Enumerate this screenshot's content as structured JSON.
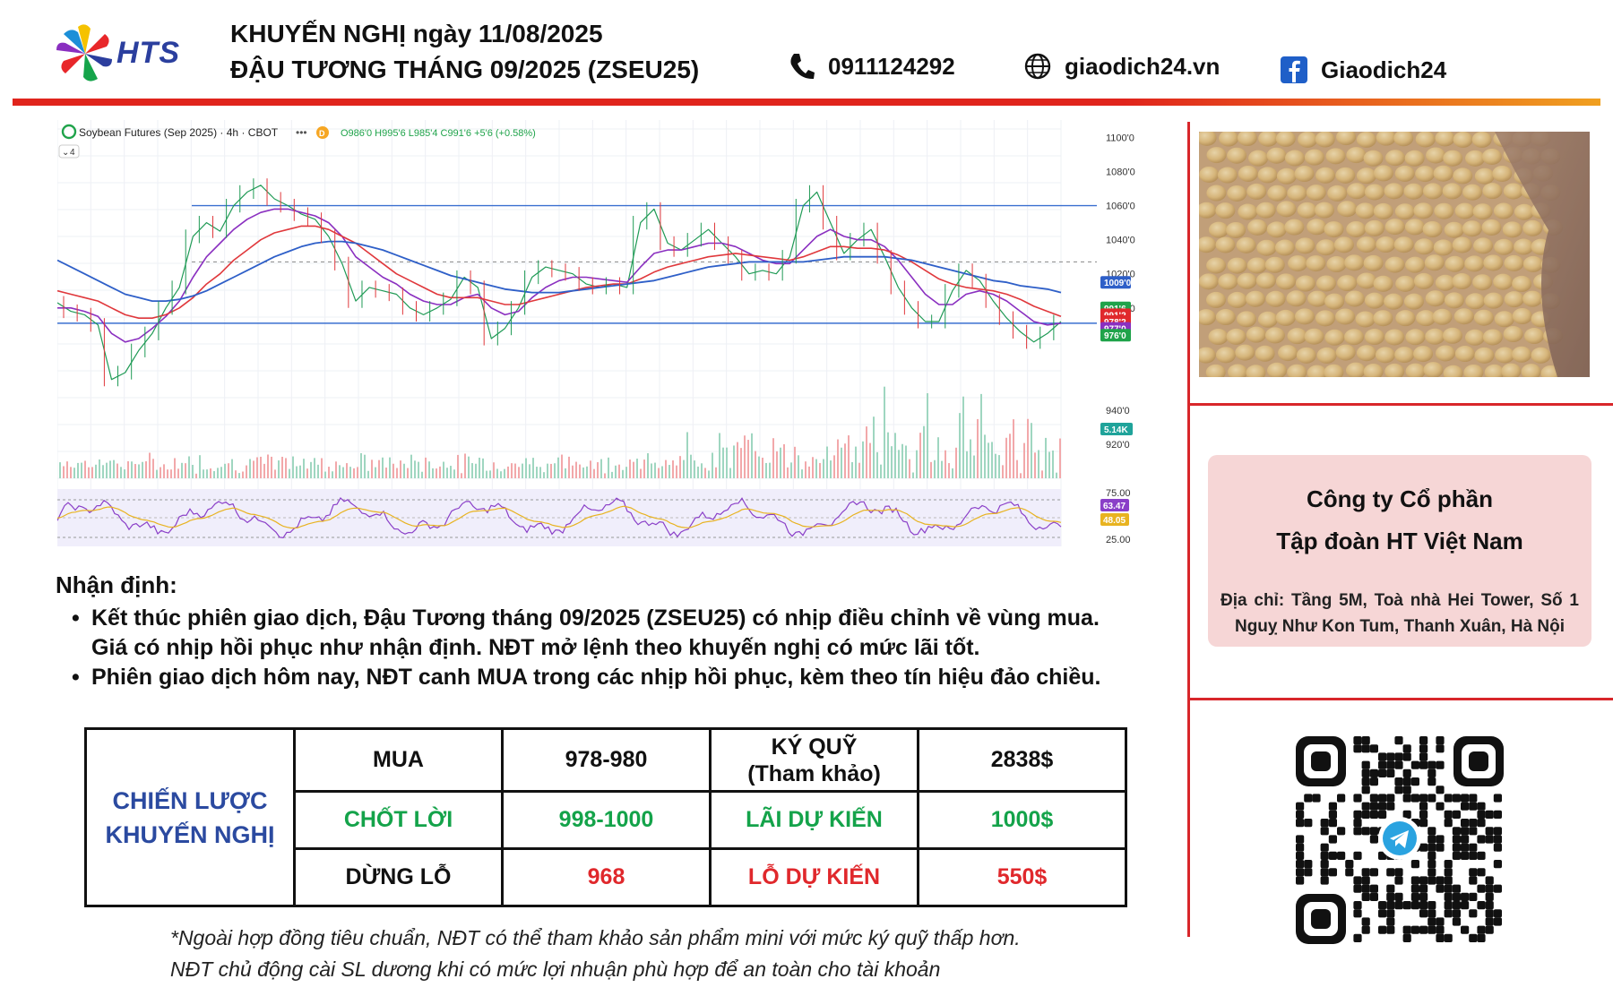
{
  "header": {
    "logo_text": "HTS",
    "title_line1": "KHUYẾN NGHỊ ngày 11/08/2025",
    "title_line2": "ĐẬU TƯƠNG THÁNG 09/2025 (ZSEU25)",
    "phone": "0911124292",
    "website": "giaodich24.vn",
    "facebook": "Giaodich24"
  },
  "chart_header": {
    "symbol": "Soybean Futures (Sep 2025) · 4h · CBOT",
    "ohlc": "O986'0 H995'6 L985'4 C991'6 +5'6 (+0.58%)",
    "indicator_count": "4"
  },
  "chart_data": {
    "type": "line",
    "price_axis_labels": [
      "1100'0",
      "1080'0",
      "1060'0",
      "1040'0",
      "1020'0",
      "1000'0",
      "940'0",
      "920'0"
    ],
    "price_badges": [
      {
        "label": "1009'0",
        "color": "#2e5fc8"
      },
      {
        "label": "991'6",
        "color": "#1fa34a"
      },
      {
        "label": "991'2",
        "color": "#e0282c"
      },
      {
        "label": "978'2",
        "color": "#e0282c"
      },
      {
        "label": "977'0",
        "color": "#8a2fc0"
      },
      {
        "label": "976'0",
        "color": "#1fa34a"
      }
    ],
    "volume_badge": {
      "label": "5.14K",
      "color": "#1fa39a"
    },
    "rsi_axis_labels": [
      "75.00",
      "25.00"
    ],
    "rsi_badges": [
      {
        "label": "63.47",
        "color": "#8a3fc8"
      },
      {
        "label": "48.05",
        "color": "#e8b320"
      }
    ],
    "ylim": [
      900,
      1105
    ],
    "resistance": 1060,
    "support": 991,
    "dashed_level": 1027,
    "series": [
      {
        "values": [
          1003,
          998,
          996,
          990,
          958,
          962,
          975,
          985,
          1000,
          1012,
          1042,
          1050,
          1045,
          1060,
          1068,
          1072,
          1064,
          1060,
          1055,
          1052,
          1042,
          1026,
          1004,
          1012,
          1010,
          1008,
          1000,
          996,
          1000,
          1005,
          1018,
          1012,
          982,
          988,
          1000,
          1018,
          1024,
          1022,
          1020,
          1014,
          1012,
          1014,
          1012,
          1050,
          1058,
          1038,
          1034,
          1040,
          1046,
          1038,
          1030,
          1020,
          1022,
          1020,
          1030,
          1060,
          1068,
          1050,
          1032,
          1040,
          1046,
          1030,
          1012,
          1000,
          992,
          992,
          1010,
          1022,
          1016,
          1004,
          994,
          986,
          980,
          985,
          992
        ]
      },
      {
        "values": [
          1000,
          1000,
          998,
          995,
          985,
          980,
          982,
          988,
          995,
          1004,
          1018,
          1030,
          1038,
          1046,
          1052,
          1056,
          1058,
          1058,
          1056,
          1054,
          1050,
          1042,
          1030,
          1024,
          1018,
          1014,
          1008,
          1004,
          1002,
          1002,
          1006,
          1008,
          1000,
          996,
          998,
          1006,
          1012,
          1016,
          1018,
          1018,
          1017,
          1016,
          1015,
          1024,
          1032,
          1034,
          1034,
          1036,
          1038,
          1038,
          1036,
          1032,
          1028,
          1026,
          1026,
          1034,
          1042,
          1046,
          1042,
          1040,
          1040,
          1036,
          1028,
          1018,
          1008,
          1002,
          1002,
          1008,
          1010,
          1008,
          1004,
          998,
          992,
          990,
          991
        ]
      },
      {
        "values": [
          1010,
          1008,
          1006,
          1004,
          1000,
          996,
          994,
          994,
          996,
          1000,
          1006,
          1014,
          1020,
          1028,
          1034,
          1040,
          1044,
          1046,
          1048,
          1048,
          1046,
          1042,
          1038,
          1032,
          1026,
          1020,
          1016,
          1012,
          1008,
          1006,
          1006,
          1006,
          1004,
          1002,
          1002,
          1004,
          1006,
          1008,
          1010,
          1012,
          1013,
          1014,
          1014,
          1017,
          1021,
          1024,
          1026,
          1028,
          1030,
          1031,
          1032,
          1031,
          1030,
          1029,
          1028,
          1030,
          1033,
          1036,
          1036,
          1035,
          1035,
          1034,
          1031,
          1027,
          1022,
          1017,
          1014,
          1012,
          1011,
          1010,
          1008,
          1005,
          1001,
          998,
          995
        ]
      },
      {
        "values": [
          1028,
          1024,
          1020,
          1016,
          1012,
          1008,
          1006,
          1004,
          1004,
          1005,
          1007,
          1010,
          1014,
          1018,
          1022,
          1026,
          1030,
          1033,
          1036,
          1038,
          1039,
          1039,
          1038,
          1036,
          1034,
          1031,
          1028,
          1025,
          1022,
          1019,
          1017,
          1015,
          1013,
          1011,
          1010,
          1009,
          1009,
          1009,
          1010,
          1011,
          1012,
          1013,
          1014,
          1015,
          1016,
          1018,
          1020,
          1022,
          1024,
          1025,
          1026,
          1027,
          1027,
          1027,
          1027,
          1027,
          1028,
          1029,
          1030,
          1030,
          1030,
          1030,
          1029,
          1028,
          1026,
          1024,
          1022,
          1020,
          1018,
          1016,
          1015,
          1013,
          1012,
          1011,
          1009
        ]
      }
    ]
  },
  "analysis": {
    "title": "Nhận định:",
    "bullet1_line1": "Kết thúc phiên giao dịch, Đậu Tương tháng 09/2025 (ZSEU25) có nhịp điều chỉnh về vùng mua.",
    "bullet1_line2": "Giá có nhịp hồi phục như nhận định. NĐT mở lệnh theo khuyến nghị có mức lãi tốt.",
    "bullet2": "Phiên giao dịch hôm nay, NĐT canh MUA trong các nhịp hồi phục, kèm theo tín hiệu đảo chiều."
  },
  "strategy": {
    "heading_line1": "CHIẾN LƯỢC",
    "heading_line2": "KHUYẾN NGHỊ",
    "rows": [
      {
        "label": "MUA",
        "value": "978-980",
        "key_line1": "KÝ QUỸ",
        "key_line2": "(Tham khảo)",
        "amount": "2838$"
      },
      {
        "label": "CHỐT LỜI",
        "value": "998-1000",
        "key": "LÃI DỰ KIẾN",
        "amount": "1000$"
      },
      {
        "label": "DỪNG LỖ",
        "value": "968",
        "key": "LỖ DỰ KIẾN",
        "amount": "550$"
      }
    ]
  },
  "notes": {
    "line1": "*Ngoài hợp đồng tiêu chuẩn, NĐT có thể tham khảo sản phẩm mini với mức ký quỹ thấp hơn.",
    "line2": "NĐT chủ động cài SL dương khi có mức lợi nhuận phù hợp để an toàn cho tài khoản"
  },
  "company": {
    "name_line1": "Công ty Cổ phần",
    "name_line2": "Tập đoàn HT Việt Nam",
    "address": "Địa chỉ: Tầng 5M, Toà nhà Hei Tower, Số 1 Nguỵ Như Kon Tum, Thanh Xuân, Hà Nội"
  },
  "colors": {
    "accent_red": "#e0241c",
    "brand_blue": "#2b3f9e",
    "profit_green": "#14a34a",
    "loss_red": "#e0282c"
  },
  "icons": [
    "phone-icon",
    "globe-icon",
    "facebook-icon",
    "telegram-icon"
  ]
}
